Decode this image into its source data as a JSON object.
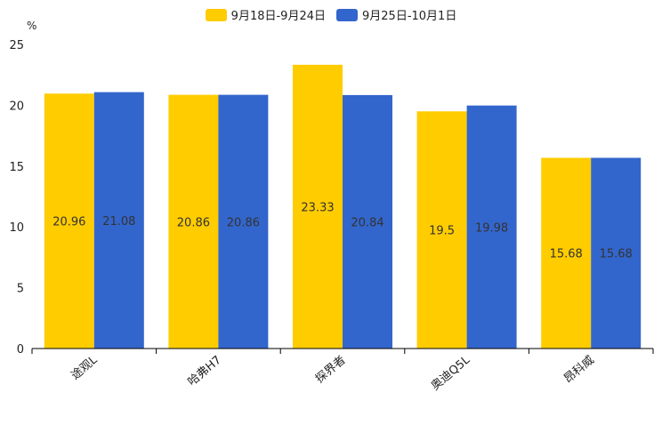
{
  "chart_data": {
    "type": "bar",
    "title": "",
    "ylabel": "%",
    "xlabel": "",
    "ylim": [
      0,
      25
    ],
    "yticks": [
      0,
      5,
      10,
      15,
      20,
      25
    ],
    "categories": [
      "途观L",
      "哈弗H7",
      "探界者",
      "奥迪Q5L",
      "昂科威"
    ],
    "series": [
      {
        "name": "9月18日-9月24日",
        "color": "#FFCC00",
        "values": [
          20.96,
          20.86,
          23.33,
          19.5,
          15.68
        ]
      },
      {
        "name": "9月25日-10月1日",
        "color": "#3366CC",
        "values": [
          21.08,
          20.86,
          20.84,
          19.98,
          15.68
        ]
      }
    ],
    "legend_position": "top-center",
    "grid": false
  }
}
